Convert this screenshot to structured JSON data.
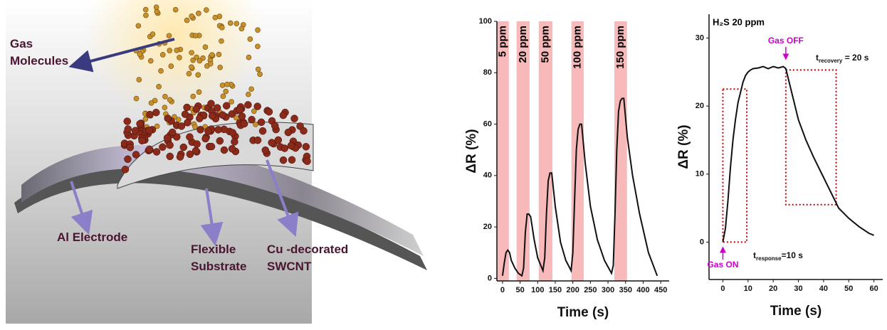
{
  "illustration": {
    "labels": [
      {
        "lines": [
          "Gas",
          "Molecules"
        ]
      },
      {
        "lines": [
          "Al  Electrode"
        ]
      },
      {
        "lines": [
          "Flexible",
          "Substrate"
        ]
      },
      {
        "lines": [
          "Cu -decorated",
          "SWCNT"
        ]
      }
    ]
  },
  "chart_data": [
    {
      "type": "line",
      "xlabel": "Time (s)",
      "ylabel": "ΔR (%)",
      "xlim": [
        -16,
        474
      ],
      "ylim": [
        -1,
        100
      ],
      "xticks": [
        0,
        50,
        100,
        150,
        200,
        250,
        300,
        350,
        400,
        450
      ],
      "yticks": [
        0,
        20,
        40,
        60,
        80,
        100
      ],
      "bands": [
        {
          "label": "5 ppm",
          "x": [
            -15,
            18
          ],
          "color": "#f7b9b9"
        },
        {
          "label": "20 ppm",
          "x": [
            40,
            77
          ],
          "color": "#f7b9b9"
        },
        {
          "label": "50 ppm",
          "x": [
            103,
            142
          ],
          "color": "#f7b9b9"
        },
        {
          "label": "100 ppm",
          "x": [
            196,
            231
          ],
          "color": "#f7b9b9"
        },
        {
          "label": "150 ppm",
          "x": [
            318,
            354
          ],
          "color": "#f7b9b9"
        }
      ],
      "x": [
        0,
        5,
        10,
        15,
        20,
        25,
        35,
        45,
        55,
        60,
        65,
        70,
        75,
        80,
        90,
        100,
        115,
        120,
        125,
        130,
        135,
        140,
        150,
        165,
        180,
        195,
        200,
        205,
        210,
        215,
        220,
        225,
        235,
        250,
        270,
        290,
        310,
        315,
        320,
        325,
        330,
        335,
        340,
        345,
        355,
        370,
        390,
        415,
        440
      ],
      "series": [
        {
          "color": "#111111",
          "values": [
            1,
            6,
            10,
            11,
            10,
            7,
            4,
            2,
            1,
            4,
            18,
            25,
            25,
            24,
            15,
            8,
            3,
            8,
            25,
            38,
            41,
            41,
            28,
            14,
            7,
            3,
            10,
            30,
            50,
            58,
            60,
            60,
            45,
            28,
            15,
            7,
            2,
            5,
            25,
            50,
            65,
            69,
            70,
            70,
            55,
            40,
            25,
            10,
            1
          ]
        }
      ]
    },
    {
      "type": "line",
      "title": "H₂S 20 ppm",
      "xlabel": "Time (s)",
      "ylabel": "ΔR (%)",
      "xlim": [
        -5.5,
        63.5
      ],
      "ylim": [
        -5.5,
        33.5
      ],
      "xticks": [
        0,
        10,
        20,
        30,
        40,
        50,
        60
      ],
      "yticks": [
        0,
        10,
        20,
        30
      ],
      "events": [
        {
          "label": "Gas ON",
          "x": 0,
          "color": "#cc00cc"
        },
        {
          "label": "Gas OFF",
          "x": 25,
          "color": "#cc00cc"
        }
      ],
      "boxes": [
        {
          "x": [
            0,
            9.5
          ],
          "y": [
            0,
            22.5
          ],
          "color": "#c00000"
        },
        {
          "x": [
            25,
            45
          ],
          "y": [
            5.5,
            25.3
          ],
          "color": "#c00000"
        }
      ],
      "annotations": [
        {
          "main": "t",
          "sub": "response",
          "tail": "=10 s"
        },
        {
          "main": "t",
          "sub": "recovery",
          "tail": " = 20 s"
        }
      ],
      "x": [
        0,
        1,
        2,
        3,
        4,
        5,
        6,
        7,
        8,
        9,
        10,
        11,
        12,
        14,
        16,
        18,
        20,
        22,
        24,
        25,
        26,
        28,
        30,
        33,
        36,
        40,
        44,
        46,
        50,
        54,
        58,
        60
      ],
      "series": [
        {
          "color": "#111111",
          "values": [
            0,
            2,
            6,
            11,
            15,
            18,
            20.5,
            22,
            23.5,
            24.5,
            25,
            25.3,
            25.5,
            25.6,
            25.8,
            25.5,
            25.8,
            25.6,
            25.8,
            25.5,
            24,
            21,
            18,
            15,
            12.5,
            9.5,
            6.5,
            5,
            3.5,
            2.3,
            1.3,
            1
          ]
        }
      ]
    }
  ]
}
